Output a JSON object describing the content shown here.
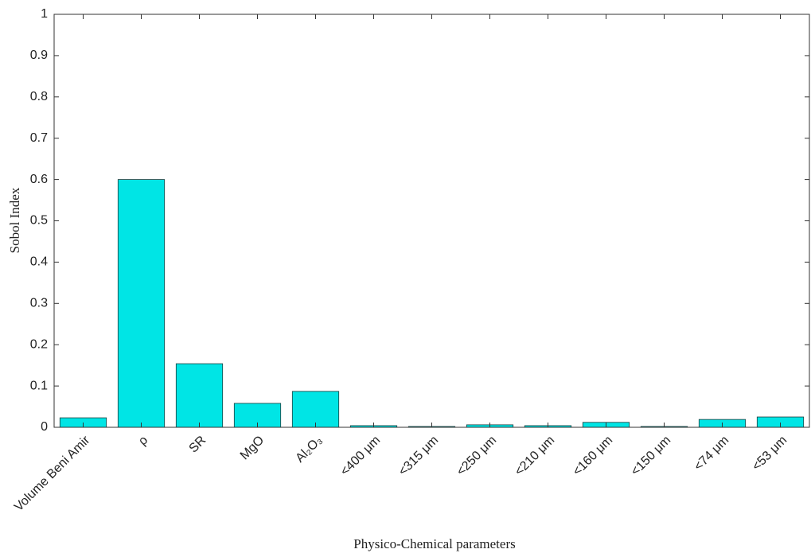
{
  "chart_data": {
    "type": "bar",
    "x_label": "Physico-Chemical parameters",
    "y_label": "Sobol Index",
    "categories": [
      "Volume Beni Amir",
      "ρ",
      "SR",
      "MgO",
      "Al₂O₃",
      "<400 μm",
      "<315 μm",
      "<250 μm",
      "<210 μm",
      "<160 μm",
      "<150 μm",
      "<74 μm",
      "<53 μm"
    ],
    "values": [
      0.023,
      0.6,
      0.154,
      0.058,
      0.087,
      0.004,
      0.002,
      0.006,
      0.004,
      0.012,
      0.002,
      0.019,
      0.025
    ],
    "color": "#00e5e5",
    "ylim": [
      0,
      1
    ],
    "yticks": [
      0,
      0.1,
      0.2,
      0.3,
      0.4,
      0.5,
      0.6,
      0.7,
      0.8,
      0.9,
      1
    ],
    "grid": false
  }
}
